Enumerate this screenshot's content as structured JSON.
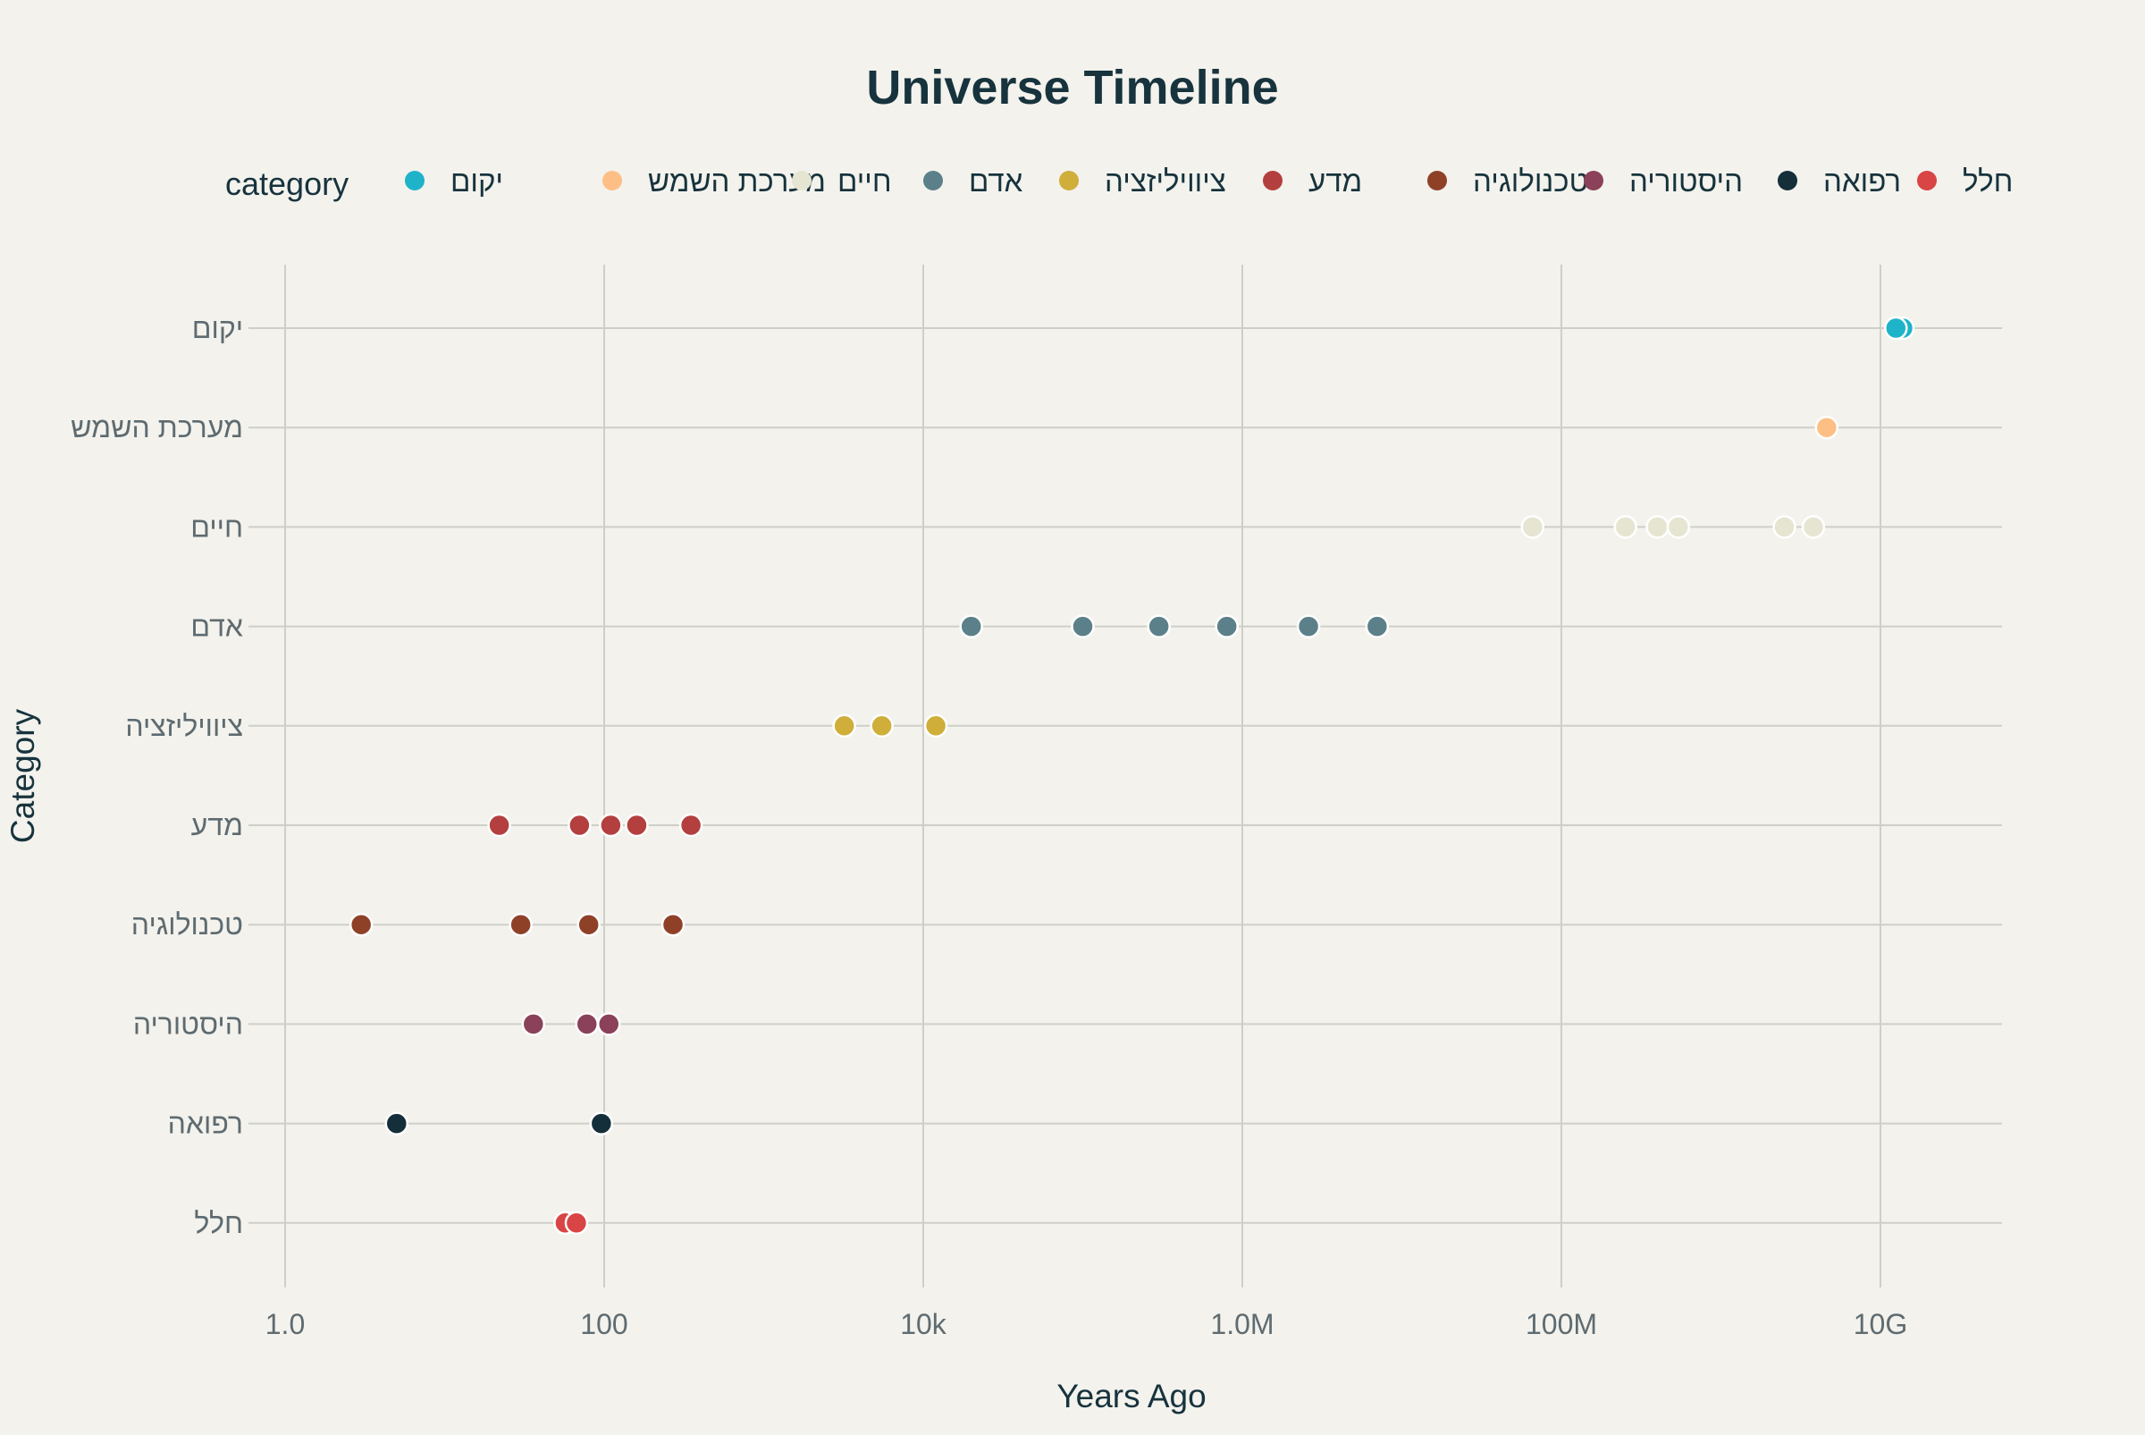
{
  "chart_data": {
    "type": "scatter",
    "title": "Universe Timeline",
    "xlabel": "Years Ago",
    "ylabel": "Category",
    "x_scale": "log",
    "xlim": [
      0.5,
      60000000000.0
    ],
    "x_ticks": [
      {
        "value": 1,
        "label": "1.0"
      },
      {
        "value": 100,
        "label": "100"
      },
      {
        "value": 10000,
        "label": "10k"
      },
      {
        "value": 1000000,
        "label": "1.0M"
      },
      {
        "value": 100000000,
        "label": "100M"
      },
      {
        "value": 10000000000,
        "label": "10G"
      }
    ],
    "grid": true,
    "legend": {
      "title": "category",
      "placement": "top"
    },
    "categories": [
      "יקום",
      "מערכת השמש",
      "חיים",
      "אדם",
      "ציוויליזציה",
      "מדע",
      "טכנולוגיה",
      "היסטוריה",
      "רפואה",
      "חלל"
    ],
    "series": [
      {
        "name": "יקום",
        "color": "#1fb3c9",
        "x": [
          13800000000,
          12500000000
        ]
      },
      {
        "name": "מערכת השמש",
        "color": "#fdbf85",
        "x": [
          4600000000
        ]
      },
      {
        "name": "חיים",
        "color": "#e6e5d2",
        "x": [
          66000000,
          252000000,
          400000000,
          541000000,
          2500000000,
          3800000000
        ]
      },
      {
        "name": "אדם",
        "color": "#5b8089",
        "x": [
          20000,
          100000,
          300000,
          800000,
          2600000,
          7000000
        ]
      },
      {
        "name": "ציוויליזציה",
        "color": "#cfae3a",
        "x": [
          3200,
          5500,
          12000
        ]
      },
      {
        "name": "מדע",
        "color": "#b33f3e",
        "x": [
          22,
          70,
          110,
          160,
          350
        ]
      },
      {
        "name": "טכנולוגיה",
        "color": "#8f4127",
        "x": [
          3,
          30,
          80,
          270
        ]
      },
      {
        "name": "היסטוריה",
        "color": "#8b4159",
        "x": [
          36,
          78,
          107
        ]
      },
      {
        "name": "רפואה",
        "color": "#142f3a",
        "x": [
          5,
          96
        ]
      },
      {
        "name": "חלל",
        "color": "#d94445",
        "x": [
          57,
          67
        ]
      }
    ]
  }
}
